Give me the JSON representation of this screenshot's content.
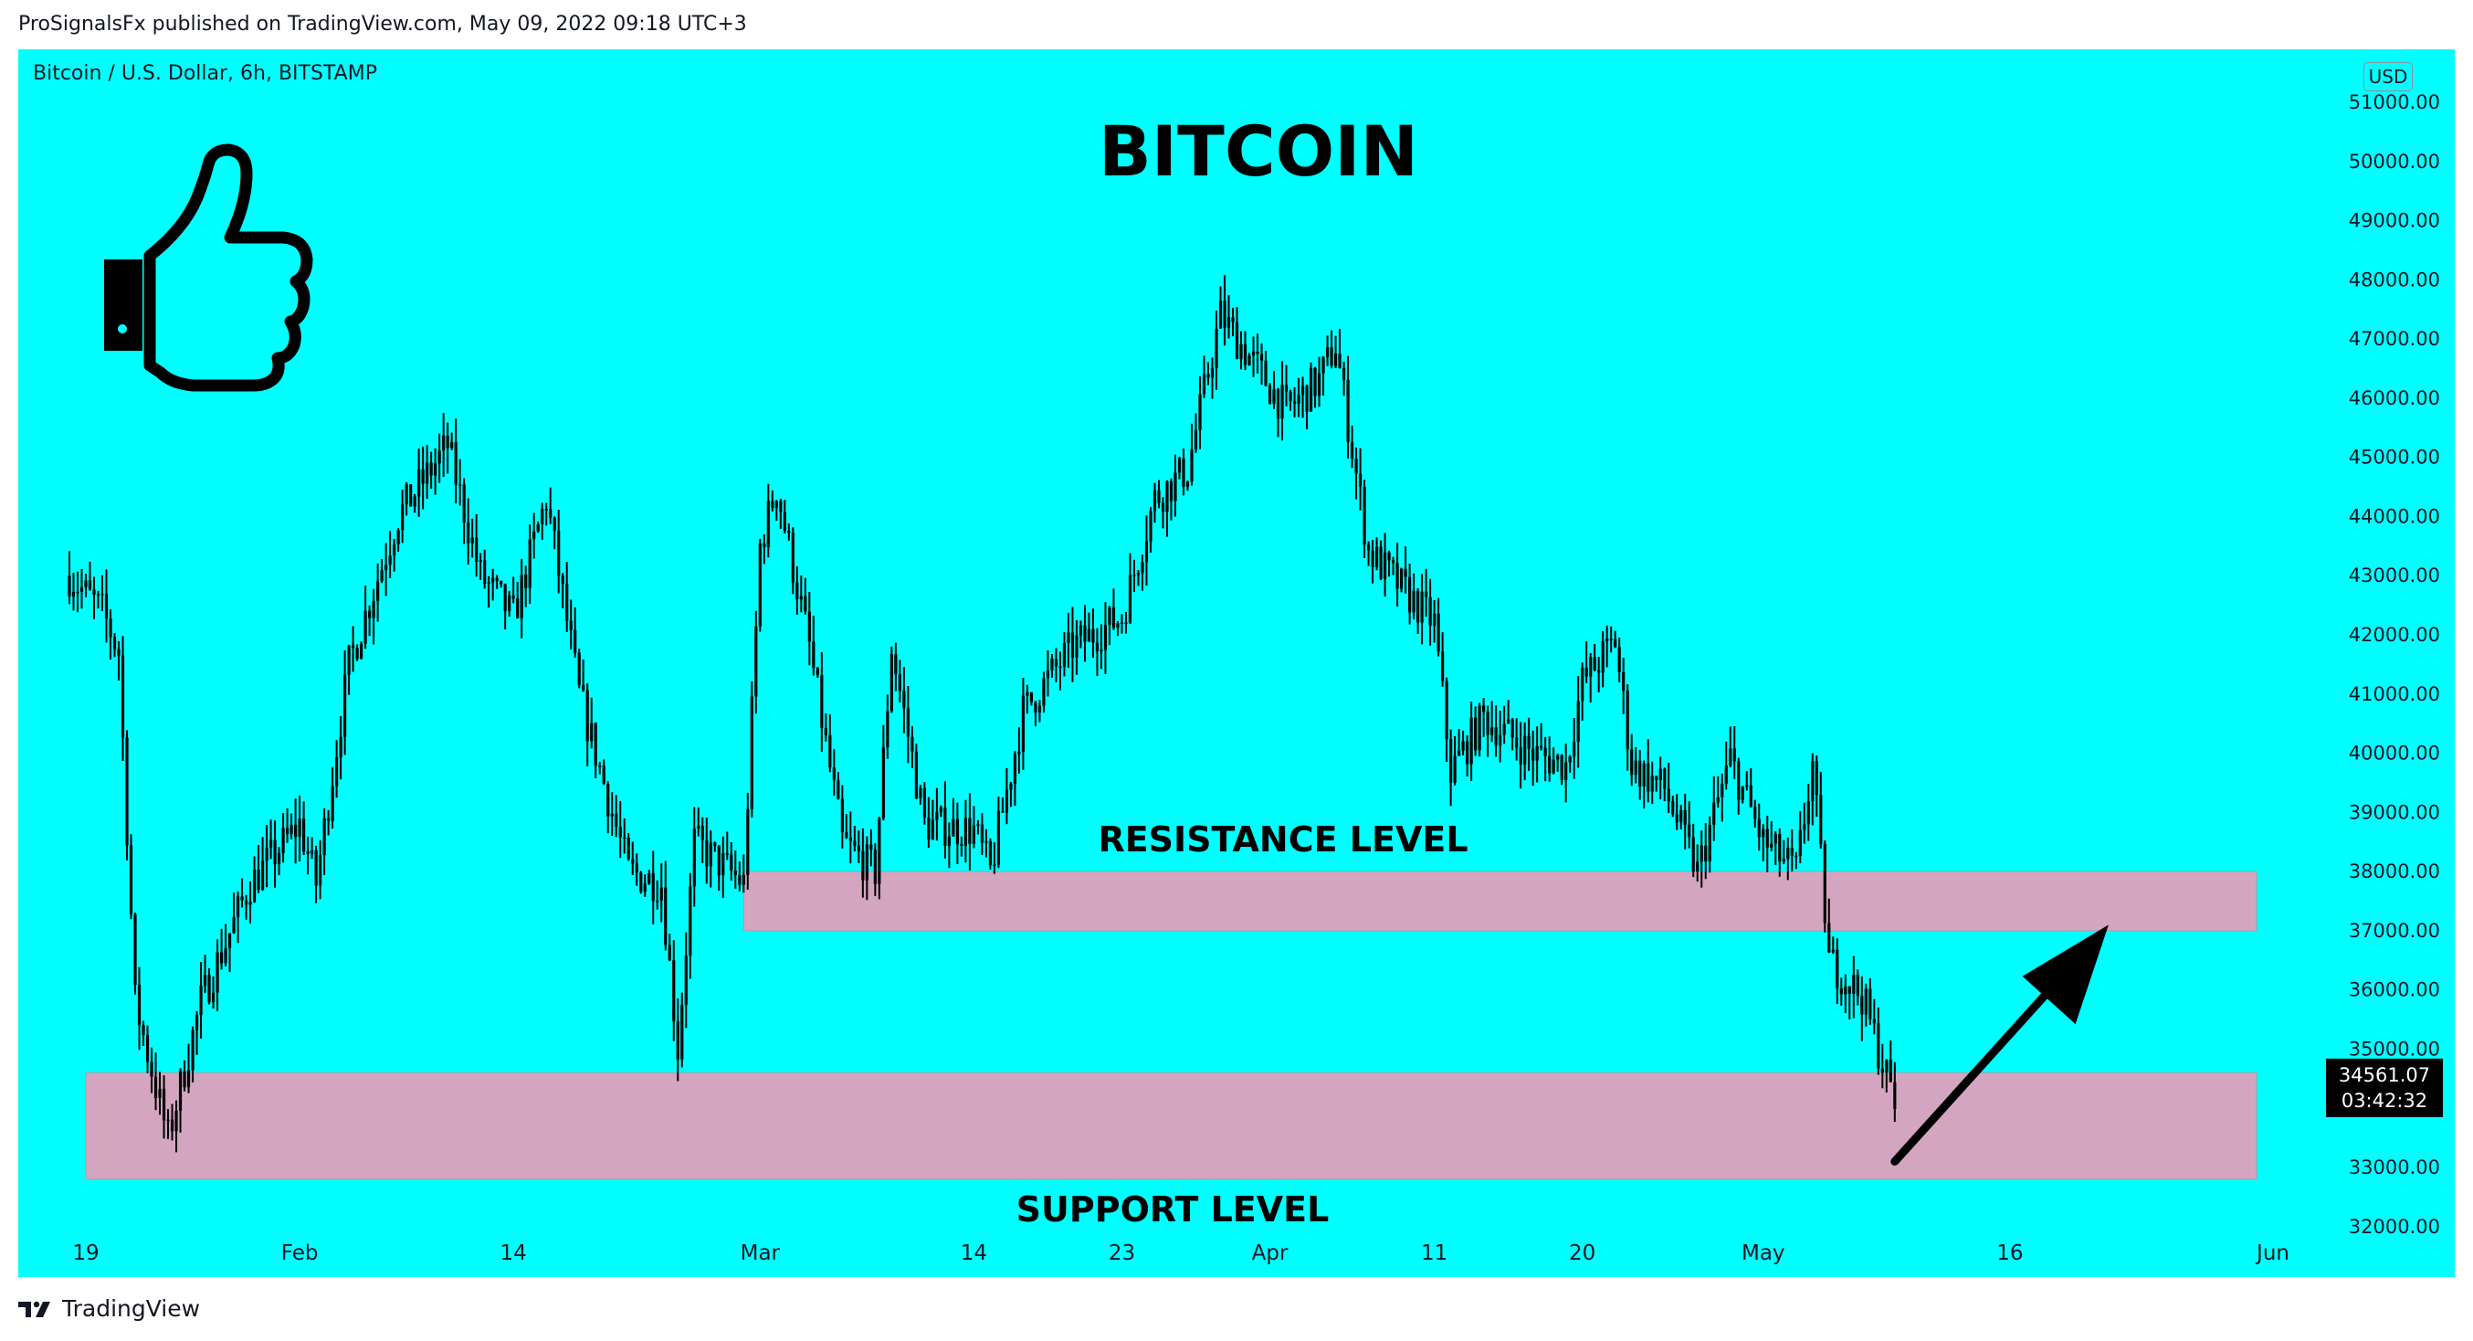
{
  "header": {
    "published_line": "ProSignalsFx published on TradingView.com, May 09, 2022 09:18 UTC+3"
  },
  "chart_header": {
    "symbol": "Bitcoin / U.S. Dollar, 6h, BITSTAMP",
    "currency": "USD"
  },
  "footer": {
    "brand": "TradingView"
  },
  "colors": {
    "background": "#00ffff",
    "zone": "#d4a5c0",
    "candle": "#000000"
  },
  "icons": [
    "thumbs-up-icon",
    "up-arrow-icon",
    "tradingview-logo-icon"
  ],
  "chart_data": {
    "type": "candlestick",
    "title": "BITCOIN",
    "ylim": [
      32000,
      51400
    ],
    "y_ticks": [
      51000,
      50000,
      49000,
      48000,
      47000,
      46000,
      45000,
      44000,
      43000,
      42000,
      41000,
      40000,
      39000,
      38000,
      37000,
      36000,
      35000,
      33000,
      32000
    ],
    "y_tick_labels": [
      "51000.00",
      "50000.00",
      "49000.00",
      "48000.00",
      "47000.00",
      "46000.00",
      "45000.00",
      "44000.00",
      "43000.00",
      "42000.00",
      "41000.00",
      "40000.00",
      "39000.00",
      "38000.00",
      "37000.00",
      "36000.00",
      "35000.00",
      "33000.00",
      "32000.00"
    ],
    "x_range": [
      "2022-01-18",
      "2022-06-01"
    ],
    "x_ticks": [
      {
        "date": "2022-01-19",
        "label": "19"
      },
      {
        "date": "2022-02-01",
        "label": "Feb"
      },
      {
        "date": "2022-02-14",
        "label": "14"
      },
      {
        "date": "2022-03-01",
        "label": "Mar"
      },
      {
        "date": "2022-03-14",
        "label": "14"
      },
      {
        "date": "2022-03-23",
        "label": "23"
      },
      {
        "date": "2022-04-01",
        "label": "Apr"
      },
      {
        "date": "2022-04-11",
        "label": "11"
      },
      {
        "date": "2022-04-20",
        "label": "20"
      },
      {
        "date": "2022-05-01",
        "label": "May"
      },
      {
        "date": "2022-05-16",
        "label": "16"
      },
      {
        "date": "2022-06-01",
        "label": "Jun"
      }
    ],
    "price_path": [
      {
        "date": "2022-01-18",
        "price": 43000
      },
      {
        "date": "2022-01-20",
        "price": 42400
      },
      {
        "date": "2022-01-21",
        "price": 41700
      },
      {
        "date": "2022-01-22",
        "price": 35800
      },
      {
        "date": "2022-01-24",
        "price": 33500
      },
      {
        "date": "2022-01-26",
        "price": 35800
      },
      {
        "date": "2022-01-29",
        "price": 37800
      },
      {
        "date": "2022-02-01",
        "price": 38800
      },
      {
        "date": "2022-02-02",
        "price": 37800
      },
      {
        "date": "2022-02-04",
        "price": 41500
      },
      {
        "date": "2022-02-07",
        "price": 44000
      },
      {
        "date": "2022-02-10",
        "price": 45200
      },
      {
        "date": "2022-02-12",
        "price": 43000
      },
      {
        "date": "2022-02-14",
        "price": 42300
      },
      {
        "date": "2022-02-16",
        "price": 44300
      },
      {
        "date": "2022-02-18",
        "price": 41000
      },
      {
        "date": "2022-02-21",
        "price": 38000
      },
      {
        "date": "2022-02-23",
        "price": 37800
      },
      {
        "date": "2022-02-24",
        "price": 35000
      },
      {
        "date": "2022-02-25",
        "price": 38500
      },
      {
        "date": "2022-02-28",
        "price": 37800
      },
      {
        "date": "2022-03-01",
        "price": 43500
      },
      {
        "date": "2022-03-02",
        "price": 44500
      },
      {
        "date": "2022-03-04",
        "price": 41800
      },
      {
        "date": "2022-03-06",
        "price": 38500
      },
      {
        "date": "2022-03-08",
        "price": 38000
      },
      {
        "date": "2022-03-09",
        "price": 41800
      },
      {
        "date": "2022-03-11",
        "price": 38800
      },
      {
        "date": "2022-03-14",
        "price": 38700
      },
      {
        "date": "2022-03-15",
        "price": 38000
      },
      {
        "date": "2022-03-17",
        "price": 40700
      },
      {
        "date": "2022-03-20",
        "price": 41800
      },
      {
        "date": "2022-03-23",
        "price": 42300
      },
      {
        "date": "2022-03-25",
        "price": 44300
      },
      {
        "date": "2022-03-27",
        "price": 44800
      },
      {
        "date": "2022-03-29",
        "price": 47400
      },
      {
        "date": "2022-03-31",
        "price": 46600
      },
      {
        "date": "2022-04-02",
        "price": 45800
      },
      {
        "date": "2022-04-04",
        "price": 46300
      },
      {
        "date": "2022-04-05",
        "price": 46900
      },
      {
        "date": "2022-04-07",
        "price": 43400
      },
      {
        "date": "2022-04-09",
        "price": 42800
      },
      {
        "date": "2022-04-11",
        "price": 42200
      },
      {
        "date": "2022-04-12",
        "price": 39700
      },
      {
        "date": "2022-04-14",
        "price": 40600
      },
      {
        "date": "2022-04-17",
        "price": 40000
      },
      {
        "date": "2022-04-19",
        "price": 39800
      },
      {
        "date": "2022-04-20",
        "price": 41200
      },
      {
        "date": "2022-04-22",
        "price": 41900
      },
      {
        "date": "2022-04-23",
        "price": 39800
      },
      {
        "date": "2022-04-25",
        "price": 39400
      },
      {
        "date": "2022-04-27",
        "price": 38000
      },
      {
        "date": "2022-04-29",
        "price": 39900
      },
      {
        "date": "2022-05-01",
        "price": 38500
      },
      {
        "date": "2022-05-03",
        "price": 38000
      },
      {
        "date": "2022-05-04",
        "price": 39800
      },
      {
        "date": "2022-05-05",
        "price": 36500
      },
      {
        "date": "2022-05-07",
        "price": 35900
      },
      {
        "date": "2022-05-09",
        "price": 34100
      }
    ],
    "zones": [
      {
        "name": "RESISTANCE LEVEL",
        "from": 37000,
        "to": 38000,
        "start": "2022-02-28",
        "end": "2022-05-31"
      },
      {
        "name": "SUPPORT LEVEL",
        "from": 32800,
        "to": 34600,
        "start": "2022-01-19",
        "end": "2022-05-31"
      }
    ],
    "annotations": {
      "resistance_label": "RESISTANCE LEVEL",
      "support_label": "SUPPORT LEVEL",
      "arrow": {
        "from_date": "2022-05-09",
        "from_price": 33100,
        "to_date": "2022-05-22",
        "to_price": 37100
      }
    },
    "last_price": {
      "value": "34561.07",
      "countdown": "03:42:32",
      "price": 34561.07
    },
    "grid": false
  }
}
